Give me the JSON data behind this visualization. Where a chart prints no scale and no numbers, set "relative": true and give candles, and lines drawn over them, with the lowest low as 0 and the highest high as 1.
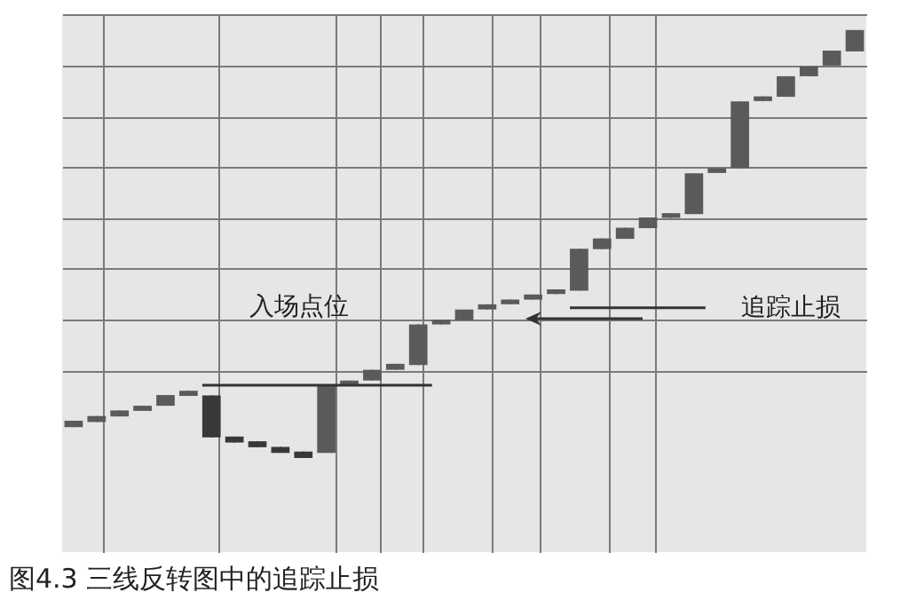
{
  "chart_data": {
    "type": "candlestick",
    "relative": true,
    "grid": true,
    "tick_labels": false,
    "categories": [
      null,
      null,
      null,
      null,
      null,
      null,
      null,
      null,
      null,
      null,
      null,
      null,
      null,
      null,
      null,
      null,
      null,
      null,
      null,
      null,
      null,
      null,
      null,
      null,
      null,
      null,
      null,
      null,
      null,
      null,
      null,
      null,
      null,
      null,
      null
    ],
    "ohlc": [
      [
        0.072,
        0.087,
        0.072,
        0.087
      ],
      [
        0.084,
        0.098,
        0.084,
        0.098
      ],
      [
        0.097,
        0.111,
        0.097,
        0.111
      ],
      [
        0.11,
        0.122,
        0.11,
        0.122
      ],
      [
        0.122,
        0.147,
        0.122,
        0.147
      ],
      [
        0.145,
        0.157,
        0.145,
        0.157
      ],
      [
        0.146,
        0.146,
        0.048,
        0.048
      ],
      [
        0.05,
        0.05,
        0.036,
        0.036
      ],
      [
        0.039,
        0.039,
        0.025,
        0.025
      ],
      [
        0.026,
        0.026,
        0.012,
        0.012
      ],
      [
        0.015,
        0.015,
        0.0,
        0.0
      ],
      [
        0.012,
        0.168,
        0.012,
        0.168
      ],
      [
        0.169,
        0.181,
        0.169,
        0.181
      ],
      [
        0.181,
        0.206,
        0.181,
        0.206
      ],
      [
        0.206,
        0.22,
        0.206,
        0.22
      ],
      [
        0.217,
        0.312,
        0.217,
        0.312
      ],
      [
        0.312,
        0.323,
        0.312,
        0.323
      ],
      [
        0.322,
        0.347,
        0.322,
        0.347
      ],
      [
        0.347,
        0.359,
        0.347,
        0.359
      ],
      [
        0.359,
        0.37,
        0.359,
        0.37
      ],
      [
        0.37,
        0.382,
        0.37,
        0.382
      ],
      [
        0.383,
        0.394,
        0.383,
        0.394
      ],
      [
        0.391,
        0.489,
        0.391,
        0.489
      ],
      [
        0.488,
        0.513,
        0.488,
        0.513
      ],
      [
        0.512,
        0.538,
        0.512,
        0.538
      ],
      [
        0.537,
        0.562,
        0.537,
        0.562
      ],
      [
        0.561,
        0.572,
        0.561,
        0.572
      ],
      [
        0.57,
        0.665,
        0.57,
        0.665
      ],
      [
        0.666,
        0.677,
        0.666,
        0.677
      ],
      [
        0.677,
        0.833,
        0.677,
        0.833
      ],
      [
        0.834,
        0.845,
        0.834,
        0.845
      ],
      [
        0.844,
        0.892,
        0.844,
        0.892
      ],
      [
        0.892,
        0.915,
        0.892,
        0.915
      ],
      [
        0.917,
        0.952,
        0.917,
        0.952
      ],
      [
        0.95,
        1.0,
        0.95,
        1.0
      ]
    ],
    "colors": [
      "#5a5a5a",
      "#5a5a5a",
      "#5a5a5a",
      "#5a5a5a",
      "#5a5a5a",
      "#5a5a5a",
      "#383838",
      "#383838",
      "#383838",
      "#383838",
      "#383838",
      "#5a5a5a",
      "#5a5a5a",
      "#5a5a5a",
      "#5a5a5a",
      "#5a5a5a",
      "#5a5a5a",
      "#5a5a5a",
      "#5a5a5a",
      "#5a5a5a",
      "#5a5a5a",
      "#5a5a5a",
      "#5a5a5a",
      "#5a5a5a",
      "#5a5a5a",
      "#5a5a5a",
      "#5a5a5a",
      "#5a5a5a",
      "#5a5a5a",
      "#5a5a5a",
      "#5a5a5a",
      "#5a5a5a",
      "#5a5a5a",
      "#5a5a5a",
      "#5a5a5a"
    ],
    "ref_lines": [
      {
        "axis": "y",
        "value": 0.17,
        "label": "入场点位",
        "color": "#333333"
      },
      {
        "axis": "y",
        "value": 0.351,
        "label": "追踪止损",
        "color": "#333333"
      }
    ],
    "annotations": [
      "图4.3 三线反转图中的追踪止损"
    ]
  }
}
